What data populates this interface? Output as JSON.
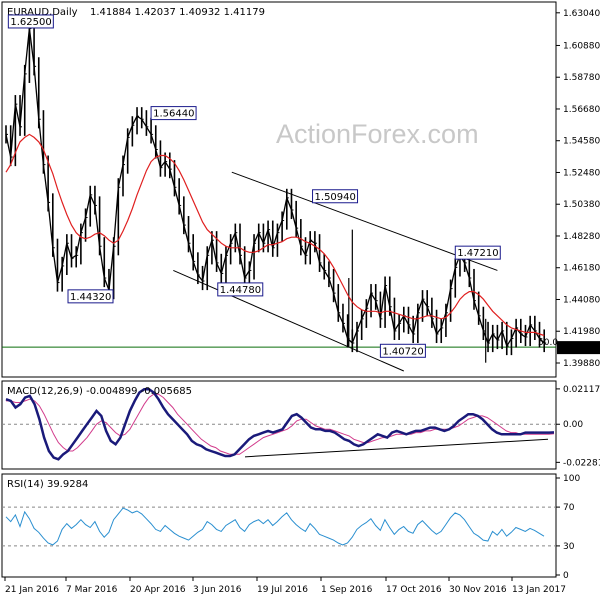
{
  "chart_data": {
    "type": "line",
    "header": {
      "symbol": "EURAUD,Daily",
      "ohlc": "1.41884 1.42037 1.40932 1.41179"
    },
    "watermark": "ActionForex.com",
    "x_tick_labels": [
      "21 Jan 2016",
      "7 Mar 2016",
      "20 Apr 2016",
      "3 Jun 2016",
      "19 Jul 2016",
      "1 Sep 2016",
      "17 Oct 2016",
      "30 Nov 2016",
      "13 Jan 2017"
    ],
    "price_panel": {
      "y_ticks": [
        "1.63040",
        "1.60880",
        "1.58780",
        "1.56680",
        "1.54580",
        "1.52480",
        "1.50380",
        "1.48280",
        "1.46180",
        "1.44080",
        "1.41980",
        "1.39880"
      ],
      "ylim": [
        1.3935,
        1.6349
      ],
      "current_price": "1.40930",
      "annotations": [
        {
          "text": "1.62500",
          "x": 2,
          "y": 1.625
        },
        {
          "text": "1.44320",
          "x": 53,
          "y": 1.4432
        },
        {
          "text": "1.56440",
          "x": 124,
          "y": 1.5644
        },
        {
          "text": "1.44780",
          "x": 181,
          "y": 1.4478
        },
        {
          "text": "1.50940",
          "x": 262,
          "y": 1.5094
        },
        {
          "text": "1.40720",
          "x": 320,
          "y": 1.4072
        },
        {
          "text": "1.47210",
          "x": 384,
          "y": 1.4721
        }
      ],
      "horizontal_level": 1.4093,
      "fib_label": "50.0",
      "price_x": [
        0,
        4,
        8,
        12,
        16,
        20,
        24,
        28,
        32,
        36,
        40,
        44,
        48,
        52,
        56,
        60,
        64,
        68,
        72,
        76,
        80,
        84,
        88,
        92,
        96,
        100,
        104,
        108,
        112,
        116,
        120,
        124,
        128,
        132,
        136,
        140,
        144,
        148,
        152,
        156,
        160,
        164,
        168,
        172,
        176,
        180,
        184,
        188,
        192,
        196,
        200,
        204,
        208,
        212,
        216,
        220,
        224,
        228,
        232,
        236,
        240,
        244,
        248,
        252,
        256,
        260,
        264,
        268,
        272,
        276,
        280,
        284,
        288,
        292,
        296,
        300,
        304,
        308,
        312,
        316,
        320,
        324,
        328,
        332,
        336,
        340,
        344,
        348,
        352,
        356,
        360,
        364,
        368,
        372,
        376,
        380,
        384,
        388,
        392,
        396,
        400,
        404,
        408,
        412,
        416,
        420,
        424,
        428,
        432,
        436,
        440,
        444,
        448,
        452,
        456,
        460
      ],
      "price": [
        1.55,
        1.535,
        1.57,
        1.555,
        1.59,
        1.62,
        1.595,
        1.56,
        1.53,
        1.505,
        1.475,
        1.452,
        1.463,
        1.478,
        1.468,
        1.47,
        1.485,
        1.495,
        1.51,
        1.503,
        1.476,
        1.455,
        1.447,
        1.476,
        1.515,
        1.53,
        1.548,
        1.556,
        1.562,
        1.56,
        1.555,
        1.55,
        1.54,
        1.528,
        1.532,
        1.527,
        1.515,
        1.503,
        1.49,
        1.478,
        1.466,
        1.457,
        1.453,
        1.47,
        1.48,
        1.465,
        1.458,
        1.47,
        1.478,
        1.485,
        1.47,
        1.455,
        1.46,
        1.478,
        1.485,
        1.478,
        1.487,
        1.475,
        1.485,
        1.493,
        1.508,
        1.5,
        1.488,
        1.476,
        1.47,
        1.48,
        1.478,
        1.465,
        1.46,
        1.455,
        1.445,
        1.432,
        1.425,
        1.415,
        1.412,
        1.42,
        1.428,
        1.435,
        1.445,
        1.44,
        1.428,
        1.45,
        1.436,
        1.42,
        1.425,
        1.43,
        1.424,
        1.418,
        1.432,
        1.441,
        1.436,
        1.428,
        1.418,
        1.422,
        1.432,
        1.448,
        1.462,
        1.47,
        1.465,
        1.455,
        1.44,
        1.43,
        1.42,
        1.412,
        1.418,
        1.414,
        1.42,
        1.41,
        1.415,
        1.422,
        1.418,
        1.416,
        1.424,
        1.42,
        1.415,
        1.412
      ],
      "ma": [
        1.525,
        1.53,
        1.538,
        1.545,
        1.548,
        1.55,
        1.548,
        1.545,
        1.54,
        1.532,
        1.524,
        1.514,
        1.505,
        1.497,
        1.49,
        1.485,
        1.482,
        1.481,
        1.482,
        1.484,
        1.485,
        1.483,
        1.48,
        1.478,
        1.48,
        1.486,
        1.493,
        1.501,
        1.51,
        1.518,
        1.526,
        1.532,
        1.535,
        1.536,
        1.536,
        1.534,
        1.531,
        1.526,
        1.52,
        1.513,
        1.506,
        1.499,
        1.492,
        1.487,
        1.484,
        1.481,
        1.478,
        1.476,
        1.475,
        1.475,
        1.475,
        1.473,
        1.472,
        1.472,
        1.473,
        1.475,
        1.477,
        1.477,
        1.478,
        1.479,
        1.481,
        1.482,
        1.482,
        1.481,
        1.479,
        1.478,
        1.476,
        1.474,
        1.471,
        1.467,
        1.462,
        1.456,
        1.45,
        1.444,
        1.439,
        1.436,
        1.434,
        1.433,
        1.433,
        1.433,
        1.432,
        1.433,
        1.433,
        1.432,
        1.431,
        1.43,
        1.429,
        1.428,
        1.428,
        1.429,
        1.43,
        1.43,
        1.429,
        1.428,
        1.429,
        1.432,
        1.436,
        1.441,
        1.444,
        1.446,
        1.446,
        1.444,
        1.441,
        1.437,
        1.433,
        1.43,
        1.427,
        1.424,
        1.422,
        1.421,
        1.42,
        1.419,
        1.419,
        1.419,
        1.418,
        1.417
      ],
      "spikes": [
        {
          "x": 296,
          "high": 1.487,
          "low": 1.408
        },
        {
          "x": 293,
          "high": 1.455,
          "low": 1.409
        },
        {
          "x": 410,
          "high": 1.428,
          "low": 1.399
        }
      ],
      "channel_upper": {
        "x": [
          193,
          420
        ],
        "y": [
          1.525,
          1.46
        ]
      },
      "channel_lower": {
        "x": [
          143,
          340
        ],
        "y": [
          1.46,
          1.3935
        ]
      }
    },
    "macd_panel": {
      "label": "MACD(12,26,9) -0.004899 -0.005685",
      "y_ticks": [
        "0.021171",
        "0.00",
        "-0.022814"
      ],
      "ylim": [
        -0.025,
        0.0235
      ],
      "macd": [
        0.015,
        0.014,
        0.01,
        0.012,
        0.016,
        0.017,
        0.012,
        0.003,
        -0.008,
        -0.016,
        -0.02,
        -0.021,
        -0.018,
        -0.016,
        -0.012,
        -0.008,
        -0.004,
        0.0,
        0.004,
        0.008,
        0.005,
        -0.004,
        -0.01,
        -0.012,
        -0.008,
        0.0,
        0.008,
        0.014,
        0.019,
        0.021,
        0.021,
        0.019,
        0.015,
        0.01,
        0.006,
        0.003,
        0.0,
        -0.003,
        -0.006,
        -0.01,
        -0.012,
        -0.013,
        -0.015,
        -0.016,
        -0.017,
        -0.018,
        -0.019,
        -0.019,
        -0.018,
        -0.015,
        -0.012,
        -0.009,
        -0.007,
        -0.006,
        -0.005,
        -0.004,
        -0.005,
        -0.004,
        -0.003,
        0.001,
        0.005,
        0.006,
        0.004,
        0.001,
        -0.002,
        -0.003,
        -0.003,
        -0.004,
        -0.004,
        -0.005,
        -0.007,
        -0.009,
        -0.01,
        -0.012,
        -0.013,
        -0.012,
        -0.01,
        -0.008,
        -0.006,
        -0.007,
        -0.008,
        -0.005,
        -0.004,
        -0.005,
        -0.006,
        -0.005,
        -0.004,
        -0.004,
        -0.003,
        -0.002,
        -0.002,
        -0.003,
        -0.004,
        -0.003,
        -0.001,
        0.002,
        0.004,
        0.006,
        0.006,
        0.005,
        0.003,
        0.0,
        -0.003,
        -0.005,
        -0.006,
        -0.006,
        -0.006,
        -0.006,
        -0.006,
        -0.005,
        -0.005,
        -0.005,
        -0.005,
        -0.005,
        -0.005,
        -0.0049
      ],
      "signal": [
        0.014,
        0.014,
        0.013,
        0.013,
        0.014,
        0.015,
        0.014,
        0.011,
        0.006,
        0.0,
        -0.006,
        -0.011,
        -0.014,
        -0.016,
        -0.016,
        -0.014,
        -0.011,
        -0.008,
        -0.004,
        0.0,
        0.002,
        0.001,
        -0.002,
        -0.005,
        -0.007,
        -0.006,
        -0.003,
        0.002,
        0.007,
        0.012,
        0.016,
        0.018,
        0.018,
        0.016,
        0.013,
        0.01,
        0.006,
        0.003,
        0.0,
        -0.003,
        -0.006,
        -0.009,
        -0.011,
        -0.013,
        -0.014,
        -0.016,
        -0.017,
        -0.018,
        -0.018,
        -0.018,
        -0.016,
        -0.014,
        -0.012,
        -0.01,
        -0.008,
        -0.007,
        -0.006,
        -0.005,
        -0.004,
        -0.003,
        -0.001,
        0.002,
        0.003,
        0.003,
        0.001,
        -0.001,
        -0.002,
        -0.003,
        -0.003,
        -0.004,
        -0.005,
        -0.006,
        -0.007,
        -0.009,
        -0.01,
        -0.011,
        -0.011,
        -0.01,
        -0.009,
        -0.008,
        -0.008,
        -0.007,
        -0.006,
        -0.006,
        -0.006,
        -0.006,
        -0.005,
        -0.005,
        -0.004,
        -0.004,
        -0.003,
        -0.003,
        -0.003,
        -0.003,
        -0.002,
        -0.001,
        0.001,
        0.003,
        0.004,
        0.005,
        0.005,
        0.004,
        0.002,
        0.0,
        -0.002,
        -0.004,
        -0.005,
        -0.005,
        -0.006,
        -0.006,
        -0.006,
        -0.006,
        -0.006,
        -0.006,
        -0.006,
        -0.0057
      ],
      "trendline": {
        "x": [
          245,
          548
        ],
        "y": [
          -0.0195,
          -0.009
        ]
      }
    },
    "rsi_panel": {
      "label": "RSI(14) 39.9284",
      "y_ticks": [
        "100",
        "70",
        "30",
        "0"
      ],
      "ylim": [
        0,
        100
      ],
      "rsi": [
        60,
        55,
        62,
        50,
        65,
        58,
        48,
        44,
        38,
        33,
        31,
        35,
        47,
        53,
        48,
        52,
        57,
        52,
        49,
        55,
        45,
        39,
        44,
        57,
        63,
        69,
        67,
        64,
        66,
        63,
        58,
        53,
        47,
        45,
        51,
        47,
        43,
        40,
        38,
        36,
        40,
        44,
        47,
        55,
        52,
        47,
        45,
        51,
        54,
        57,
        49,
        45,
        52,
        55,
        57,
        53,
        57,
        51,
        55,
        60,
        64,
        57,
        52,
        48,
        45,
        53,
        48,
        42,
        40,
        38,
        36,
        33,
        31,
        33,
        39,
        47,
        51,
        54,
        58,
        51,
        46,
        57,
        49,
        42,
        47,
        50,
        45,
        43,
        52,
        56,
        51,
        46,
        42,
        45,
        52,
        59,
        64,
        62,
        57,
        50,
        43,
        40,
        36,
        35,
        45,
        41,
        47,
        40,
        44,
        49,
        47,
        45,
        48,
        46,
        43,
        40
      ]
    }
  }
}
